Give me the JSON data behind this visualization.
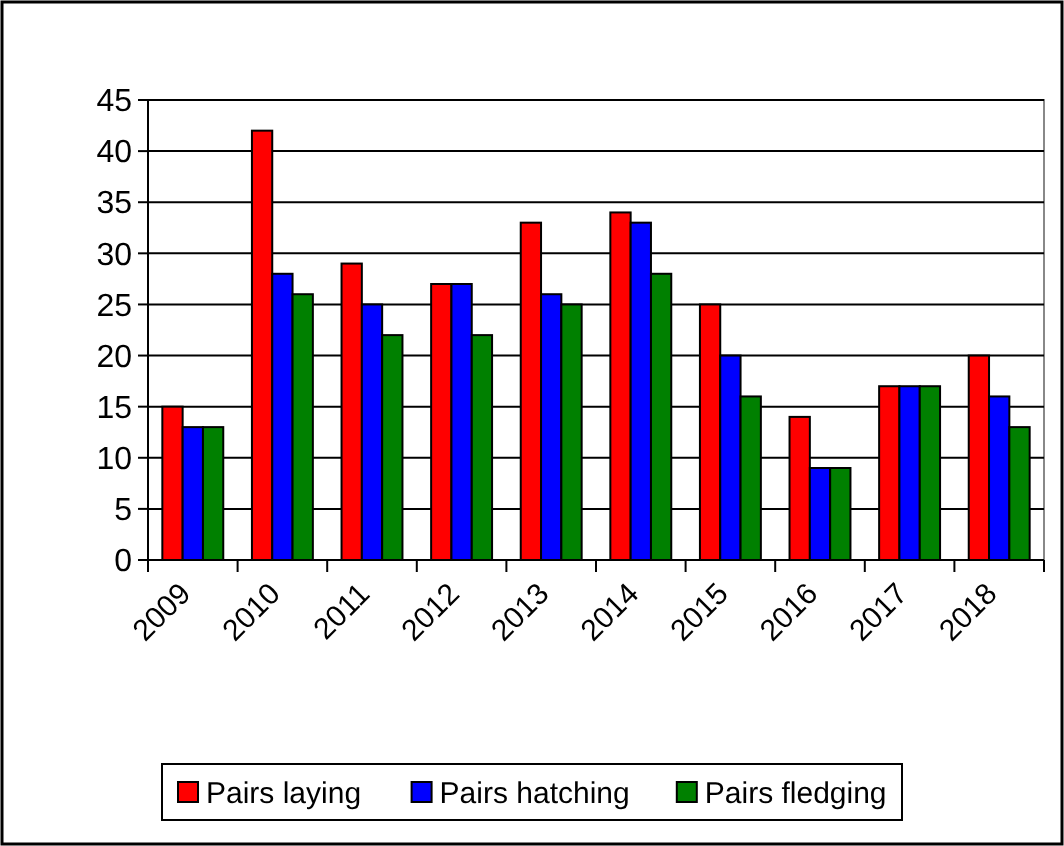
{
  "chart_data": {
    "type": "bar",
    "categories": [
      "2009",
      "2010",
      "2011",
      "2012",
      "2013",
      "2014",
      "2015",
      "2016",
      "2017",
      "2018"
    ],
    "series": [
      {
        "name": "Pairs laying",
        "color": "#ff0000",
        "values": [
          15,
          42,
          29,
          27,
          33,
          34,
          25,
          14,
          17,
          20
        ]
      },
      {
        "name": "Pairs hatching",
        "color": "#0000ff",
        "values": [
          13,
          28,
          25,
          27,
          26,
          33,
          20,
          9,
          17,
          16
        ]
      },
      {
        "name": "Pairs fledging",
        "color": "#008000",
        "values": [
          13,
          26,
          22,
          22,
          25,
          28,
          16,
          9,
          17,
          13
        ]
      }
    ],
    "ylim": [
      0,
      45
    ],
    "yticks": [
      0,
      5,
      10,
      15,
      20,
      25,
      30,
      35,
      40,
      45
    ],
    "grid": "y",
    "legend": "bottom"
  }
}
